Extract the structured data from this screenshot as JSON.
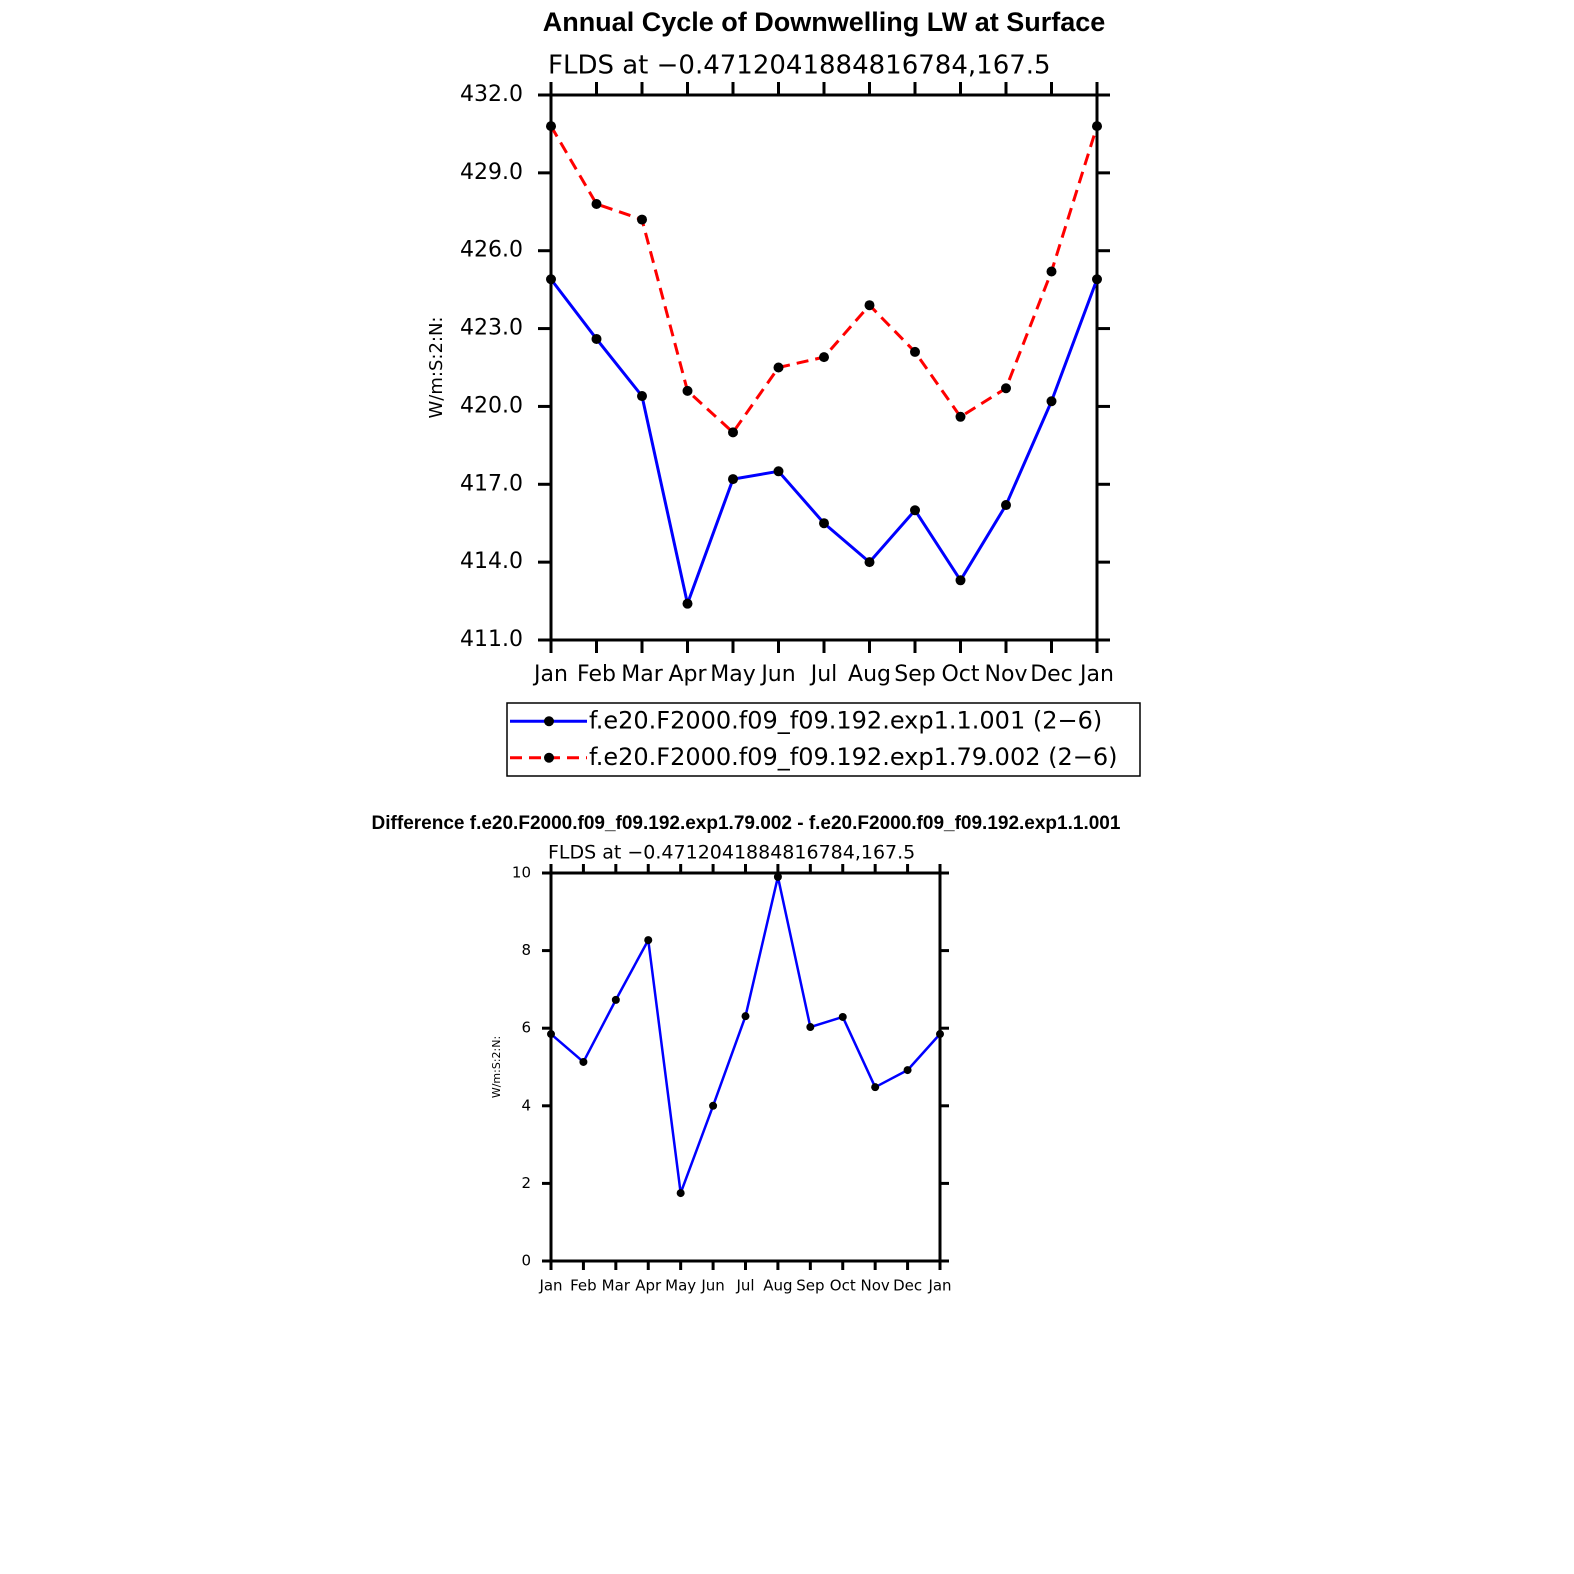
{
  "chart_data": [
    {
      "type": "line",
      "title": "Annual Cycle of Downwelling LW at Surface",
      "subtitle": "FLDS at −0.4712041884816784,167.5",
      "y_label": "W/m:S:2:N:",
      "categories": [
        "Jan",
        "Feb",
        "Mar",
        "Apr",
        "May",
        "Jun",
        "Jul",
        "Aug",
        "Sep",
        "Oct",
        "Nov",
        "Dec",
        "Jan"
      ],
      "series": [
        {
          "name": "f.e20.F2000.f09_f09.192.exp1.1.001 (2−6)",
          "color": "#0000ff",
          "line_style": "solid",
          "values": [
            424.9,
            422.6,
            420.4,
            412.4,
            417.2,
            417.5,
            415.5,
            414.0,
            416.0,
            413.3,
            416.2,
            420.2,
            424.9
          ]
        },
        {
          "name": "f.e20.F2000.f09_f09.192.exp1.79.002 (2−6)",
          "color": "#ff0000",
          "line_style": "dashed",
          "values": [
            430.8,
            427.8,
            427.2,
            420.6,
            419.0,
            421.5,
            421.9,
            423.9,
            422.1,
            419.6,
            420.7,
            425.2,
            430.8
          ]
        }
      ],
      "marker_color": "#000000",
      "ylim": [
        411,
        432
      ],
      "yticks": [
        {
          "value": 411,
          "label": "411.0"
        },
        {
          "value": 414,
          "label": "414.0"
        },
        {
          "value": 417,
          "label": "417.0"
        },
        {
          "value": 420,
          "label": "420.0"
        },
        {
          "value": 423,
          "label": "423.0"
        },
        {
          "value": 426,
          "label": "426.0"
        },
        {
          "value": 429,
          "label": "429.0"
        },
        {
          "value": 432,
          "label": "432.0"
        }
      ],
      "legend": "bottom"
    },
    {
      "type": "line",
      "title": "Difference f.e20.F2000.f09_f09.192.exp1.79.002 - f.e20.F2000.f09_f09.192.exp1.1.001",
      "subtitle": "FLDS at −0.4712041884816784,167.5",
      "y_label": "W/m:S:2:N:",
      "categories": [
        "Jan",
        "Feb",
        "Mar",
        "Apr",
        "May",
        "Jun",
        "Jul",
        "Aug",
        "Sep",
        "Oct",
        "Nov",
        "Dec",
        "Jan"
      ],
      "series": [
        {
          "color": "#0000ff",
          "line_style": "solid",
          "values": [
            5.85,
            5.13,
            6.73,
            8.27,
            1.75,
            4.0,
            6.31,
            9.9,
            6.03,
            6.29,
            4.48,
            4.92,
            5.85
          ]
        }
      ],
      "marker_color": "#000000",
      "ylim": [
        0,
        10
      ],
      "yticks": [
        0,
        2,
        4,
        6,
        8,
        10
      ]
    }
  ]
}
